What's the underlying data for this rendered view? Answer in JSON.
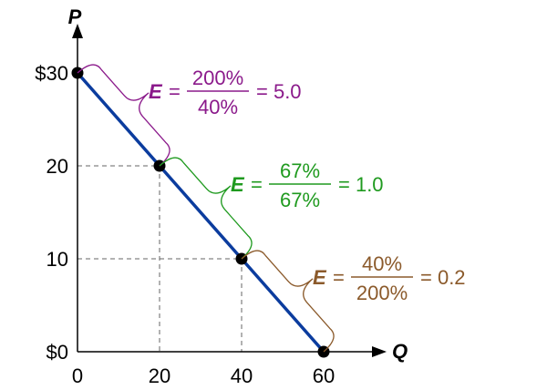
{
  "chart_data": {
    "type": "line",
    "xlabel": "Q",
    "ylabel": "P",
    "xlim": [
      0,
      60
    ],
    "ylim": [
      0,
      30
    ],
    "x_ticks": [
      {
        "value": 0,
        "label": "0"
      },
      {
        "value": 20,
        "label": "20"
      },
      {
        "value": 40,
        "label": "40"
      },
      {
        "value": 60,
        "label": "60"
      }
    ],
    "y_ticks": [
      {
        "value": 0,
        "label": "$0"
      },
      {
        "value": 10,
        "label": "10"
      },
      {
        "value": 20,
        "label": "20"
      },
      {
        "value": 30,
        "label": "$30"
      }
    ],
    "series": [
      {
        "color": "#0b3c9e",
        "points": [
          {
            "x": 0,
            "y": 30
          },
          {
            "x": 20,
            "y": 20
          },
          {
            "x": 40,
            "y": 10
          },
          {
            "x": 60,
            "y": 0
          }
        ]
      }
    ],
    "elasticity_annotations": [
      {
        "from_x": 0,
        "to_x": 20,
        "label": "E",
        "numerator": "200%",
        "denominator": "40%",
        "result": "= 5.0",
        "color": "#8b1a8b"
      },
      {
        "from_x": 20,
        "to_x": 40,
        "label": "E",
        "numerator": "67%",
        "denominator": "67%",
        "result": "= 1.0",
        "color": "#1f9a1f"
      },
      {
        "from_x": 40,
        "to_x": 60,
        "label": "E",
        "numerator": "40%",
        "denominator": "200%",
        "result": "= 0.2",
        "color": "#8b5a2b"
      }
    ],
    "guide_lines": true
  }
}
